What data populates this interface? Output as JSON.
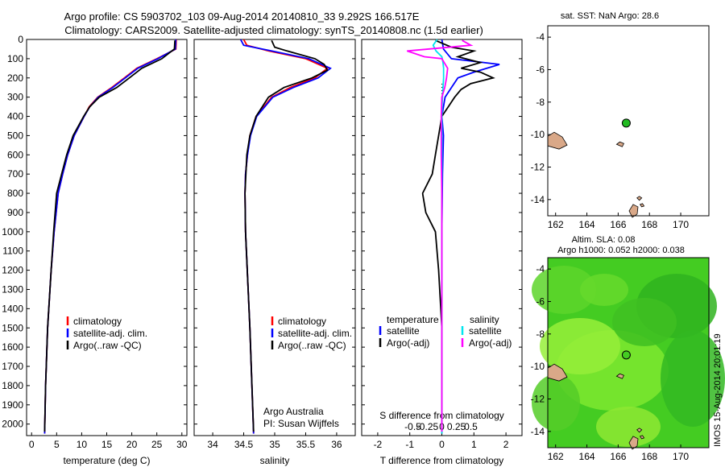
{
  "header": {
    "title_line1": "Argo profile: CS 5903702_103 09-Aug-2014 20140810_33 9.292S 166.517E",
    "title_line2": "Climatology: CARS2009. Satellite-adjusted climatology: synTS_20140808.nc (1.5d earlier)"
  },
  "colors": {
    "climatology": "#ff0000",
    "satellite": "#0000ff",
    "argo": "#000000",
    "salinity_satellite": "#00e5ee",
    "salinity_argo": "#ff00ff",
    "land": "#d9a888",
    "sla_field": "#44cc22"
  },
  "chart_data": [
    {
      "type": "line",
      "id": "temperature",
      "xlabel": "temperature (deg C)",
      "xlim": [
        -1,
        31
      ],
      "ylim": [
        2060,
        0
      ],
      "xticks": [
        0,
        5,
        10,
        15,
        20,
        25,
        30
      ],
      "yticks": [
        0,
        100,
        200,
        300,
        400,
        500,
        600,
        700,
        800,
        900,
        1000,
        1100,
        1200,
        1300,
        1400,
        1500,
        1600,
        1700,
        1800,
        1900,
        2000
      ],
      "legend": [
        "climatology",
        "satellite-adj. clim.",
        "Argo(..raw -QC)"
      ],
      "series": [
        {
          "name": "climatology",
          "color": "#ff0000",
          "depth": [
            0,
            50,
            100,
            150,
            200,
            250,
            300,
            350,
            400,
            500,
            600,
            700,
            800,
            1000,
            1200,
            1500,
            1800,
            2050
          ],
          "values": [
            28.9,
            28.8,
            25.0,
            21.0,
            18.5,
            16.0,
            13.2,
            11.5,
            10.5,
            8.5,
            7.2,
            6.2,
            5.3,
            4.5,
            3.9,
            3.2,
            2.8,
            2.6
          ]
        },
        {
          "name": "satellite-adj. clim.",
          "color": "#0000ff",
          "depth": [
            0,
            50,
            100,
            150,
            200,
            250,
            300,
            350,
            400,
            500,
            600,
            700,
            800,
            1000,
            1200,
            1500,
            1800,
            2050
          ],
          "values": [
            28.8,
            28.7,
            25.2,
            21.2,
            18.7,
            16.2,
            13.3,
            11.6,
            10.5,
            8.5,
            7.2,
            6.2,
            5.3,
            4.5,
            3.9,
            3.2,
            2.8,
            2.6
          ]
        },
        {
          "name": "Argo(..raw -QC)",
          "color": "#000000",
          "depth": [
            5,
            50,
            70,
            100,
            150,
            200,
            250,
            300,
            350,
            400,
            500,
            600,
            700,
            800,
            1000,
            1200,
            1500,
            1800,
            2040
          ],
          "values": [
            28.6,
            28.5,
            27.5,
            26.0,
            22.0,
            19.5,
            17.0,
            13.5,
            11.6,
            10.4,
            8.3,
            7.0,
            6.0,
            5.0,
            4.4,
            3.9,
            3.2,
            2.8,
            2.6
          ]
        }
      ]
    },
    {
      "type": "line",
      "id": "salinity",
      "xlabel": "salinity",
      "xlim": [
        33.7,
        36.3
      ],
      "ylim": [
        2060,
        0
      ],
      "xticks": [
        34,
        34.5,
        35,
        35.5,
        36
      ],
      "xticklabels": [
        "34",
        "34.5",
        "35",
        "35.5",
        "36"
      ],
      "legend": [
        "climatology",
        "satellite-adj. clim.",
        "Argo(..raw -QC)"
      ],
      "annotation": [
        "Argo Australia",
        "PI: Susan Wijffels"
      ],
      "series": [
        {
          "name": "climatology",
          "color": "#ff0000",
          "depth": [
            0,
            30,
            60,
            100,
            150,
            200,
            250,
            300,
            400,
            500,
            600,
            700,
            800,
            1000,
            1500,
            2050
          ],
          "values": [
            34.5,
            34.55,
            34.9,
            35.5,
            35.85,
            35.65,
            35.25,
            34.95,
            34.7,
            34.6,
            34.56,
            34.53,
            34.52,
            34.53,
            34.6,
            34.66
          ]
        },
        {
          "name": "satellite-adj. clim.",
          "color": "#0000ff",
          "depth": [
            0,
            30,
            60,
            100,
            150,
            200,
            250,
            300,
            400,
            500,
            600,
            700,
            800,
            1000,
            1500,
            2050
          ],
          "values": [
            34.45,
            34.5,
            34.95,
            35.55,
            35.9,
            35.7,
            35.3,
            34.97,
            34.71,
            34.61,
            34.56,
            34.53,
            34.52,
            34.53,
            34.6,
            34.66
          ]
        },
        {
          "name": "Argo(..raw -QC)",
          "color": "#000000",
          "depth": [
            5,
            40,
            60,
            100,
            130,
            160,
            200,
            250,
            300,
            400,
            500,
            600,
            800,
            1000,
            1500,
            2040
          ],
          "values": [
            34.95,
            35.0,
            35.2,
            35.65,
            35.8,
            35.85,
            35.6,
            35.15,
            34.9,
            34.7,
            34.6,
            34.55,
            34.52,
            34.53,
            34.6,
            34.66
          ]
        }
      ]
    },
    {
      "type": "line",
      "id": "differences",
      "xlabel": "T difference from climatology",
      "xlabel_top": "S difference from climatology",
      "xlim": [
        -2.5,
        2.5
      ],
      "ylim": [
        2060,
        0
      ],
      "xticks": [
        -2,
        -1,
        0,
        1,
        2
      ],
      "sticks": [
        -0.5,
        -0.25,
        0,
        0.25,
        0.5
      ],
      "sticklabels": [
        "-0.5",
        "-0.25",
        "0",
        "0.25",
        "0.5"
      ],
      "legend_temperature_title": "temperature",
      "legend_salinity_title": "salinity",
      "legend": [
        "satellite",
        "Argo(-adj)",
        "satellite",
        "Argo(-adj)"
      ],
      "series": [
        {
          "name": "temperature satellite",
          "color": "#0000ff",
          "depth": [
            0,
            50,
            100,
            130,
            170,
            200,
            250,
            300,
            400,
            500,
            700,
            1000,
            1500,
            2050
          ],
          "values": [
            0.0,
            0.05,
            0.3,
            1.8,
            1.0,
            0.5,
            0.3,
            0.1,
            0.0,
            0.05,
            0.02,
            0.0,
            0.0,
            0.0
          ]
        },
        {
          "name": "temperature Argo(-adj)",
          "color": "#000000",
          "depth": [
            5,
            40,
            60,
            90,
            120,
            150,
            170,
            200,
            230,
            260,
            300,
            350,
            400,
            500,
            600,
            700,
            800,
            900,
            1000,
            1200,
            1500,
            1800,
            2040
          ],
          "values": [
            -0.2,
            0.3,
            1.0,
            0.5,
            1.2,
            0.6,
            1.2,
            1.6,
            0.9,
            0.6,
            0.4,
            0.2,
            0.0,
            -0.1,
            -0.2,
            -0.3,
            -0.6,
            -0.5,
            -0.2,
            -0.1,
            0.0,
            0.0,
            0.0
          ]
        },
        {
          "name": "salinity satellite",
          "color": "#00e5ee",
          "depth": [
            0,
            30,
            60,
            90,
            120,
            150,
            200,
            250,
            300,
            400,
            500,
            1000,
            1500,
            2050
          ],
          "values": [
            -0.08,
            -0.15,
            -0.1,
            0.0,
            0.02,
            0.03,
            0.03,
            0.02,
            0.01,
            0.0,
            0.0,
            0.0,
            0.0,
            0.0
          ]
        },
        {
          "name": "salinity Argo(-adj)",
          "color": "#ff00ff",
          "depth": [
            5,
            30,
            60,
            90,
            100,
            150,
            200,
            250,
            300,
            400,
            500,
            600,
            800,
            1000,
            1500,
            2040
          ],
          "values": [
            0.35,
            0.5,
            -0.6,
            -0.3,
            0.0,
            0.1,
            0.08,
            0.05,
            0.0,
            -0.01,
            -0.01,
            -0.01,
            0.0,
            0.0,
            0.0,
            0.0
          ]
        }
      ]
    }
  ],
  "maps": {
    "sst": {
      "title": "sat. SST: NaN Argo: 28.6",
      "xticks": [
        162,
        164,
        166,
        168,
        170
      ],
      "yticks": [
        -4,
        -6,
        -8,
        -10,
        -12,
        -14
      ],
      "xlim": [
        161.5,
        171.8
      ],
      "ylim": [
        -15,
        -3.3
      ],
      "argo_lon": 166.517,
      "argo_lat": -9.292,
      "marker_color": "#22bb22"
    },
    "sla": {
      "title_line1": "Altim. SLA: 0.08",
      "title_line2": "Argo h1000: 0.052 h2000: 0.038",
      "xticks": [
        162,
        164,
        166,
        168,
        170
      ],
      "yticks": [
        -4,
        -6,
        -8,
        -10,
        -12,
        -14
      ],
      "xlim": [
        161.5,
        171.8
      ],
      "ylim": [
        -15,
        -3.3
      ],
      "argo_lon": 166.517,
      "argo_lat": -9.292,
      "marker_color": "#44cc22"
    }
  },
  "stamp": "IMOS 15-Aug-2014 20:01:19"
}
